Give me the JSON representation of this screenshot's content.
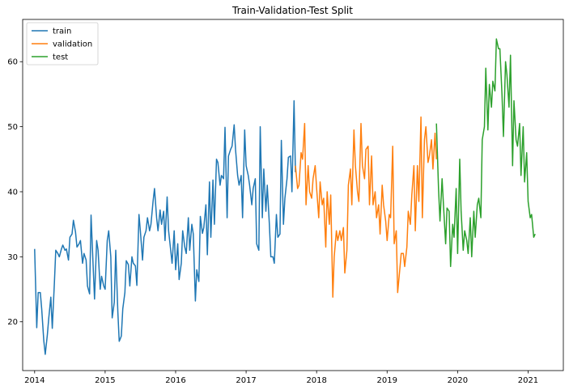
{
  "chart_data": {
    "type": "line",
    "title": "Train-Validation-Test Split",
    "xlabel": "",
    "ylabel": "",
    "xlim": [
      2013.83,
      2021.5
    ],
    "ylim": [
      12.5,
      66.5
    ],
    "x_ticks": [
      2014,
      2015,
      2016,
      2017,
      2018,
      2019,
      2020,
      2021
    ],
    "x_tick_labels": [
      "2014",
      "2015",
      "2016",
      "2017",
      "2018",
      "2019",
      "2020",
      "2021"
    ],
    "y_ticks": [
      20,
      30,
      40,
      50,
      60
    ],
    "y_tick_labels": [
      "20",
      "30",
      "40",
      "50",
      "60"
    ],
    "grid": false,
    "legend_position": "top-left",
    "series": [
      {
        "name": "train",
        "color": "#1f77b4",
        "x": [
          2014.0,
          2014.03,
          2014.05,
          2014.08,
          2014.1,
          2014.13,
          2014.15,
          2014.18,
          2014.2,
          2014.23,
          2014.25,
          2014.28,
          2014.3,
          2014.33,
          2014.35,
          2014.38,
          2014.4,
          2014.43,
          2014.45,
          2014.48,
          2014.5,
          2014.53,
          2014.55,
          2014.58,
          2014.6,
          2014.63,
          2014.65,
          2014.68,
          2014.7,
          2014.73,
          2014.75,
          2014.78,
          2014.8,
          2014.83,
          2014.85,
          2014.88,
          2014.9,
          2014.93,
          2014.95,
          2014.98,
          2015.0,
          2015.03,
          2015.05,
          2015.08,
          2015.1,
          2015.13,
          2015.15,
          2015.18,
          2015.2,
          2015.23,
          2015.25,
          2015.28,
          2015.3,
          2015.33,
          2015.35,
          2015.38,
          2015.4,
          2015.43,
          2015.45,
          2015.48,
          2015.5,
          2015.53,
          2015.55,
          2015.58,
          2015.6,
          2015.63,
          2015.65,
          2015.68,
          2015.7,
          2015.73,
          2015.75,
          2015.78,
          2015.8,
          2015.83,
          2015.85,
          2015.88,
          2015.9,
          2015.93,
          2015.95,
          2015.98,
          2016.0,
          2016.03,
          2016.05,
          2016.08,
          2016.1,
          2016.13,
          2016.15,
          2016.18,
          2016.2,
          2016.23,
          2016.25,
          2016.28,
          2016.3,
          2016.33,
          2016.35,
          2016.38,
          2016.4,
          2016.43,
          2016.45,
          2016.48,
          2016.5,
          2016.53,
          2016.55,
          2016.58,
          2016.6,
          2016.63,
          2016.65,
          2016.68,
          2016.7,
          2016.73,
          2016.75,
          2016.78,
          2016.8,
          2016.83,
          2016.85,
          2016.88,
          2016.9,
          2016.93,
          2016.95,
          2016.98,
          2017.0,
          2017.03,
          2017.05,
          2017.08,
          2017.1,
          2017.13,
          2017.15,
          2017.18,
          2017.2,
          2017.23,
          2017.25,
          2017.28,
          2017.3,
          2017.33,
          2017.35,
          2017.38,
          2017.4,
          2017.43,
          2017.45,
          2017.48,
          2017.5,
          2017.53,
          2017.55
        ],
        "values": [
          31.2,
          19.1,
          24.5,
          24.5,
          22.0,
          17.1,
          15.0,
          18.0,
          20.5,
          23.8,
          19.0,
          26.0,
          31.0,
          30.5,
          30.0,
          31.2,
          31.8,
          31.0,
          31.2,
          29.5,
          33.0,
          33.5,
          35.6,
          33.8,
          31.5,
          32.0,
          32.5,
          29.0,
          30.5,
          29.5,
          25.5,
          24.3,
          36.4,
          28.5,
          23.5,
          32.5,
          31.0,
          25.0,
          27.0,
          25.5,
          25.0,
          32.5,
          34.0,
          30.0,
          20.6,
          23.0,
          31.0,
          21.5,
          17.0,
          17.8,
          22.0,
          24.5,
          29.4,
          28.8,
          25.5,
          30.0,
          29.0,
          28.6,
          25.6,
          36.5,
          34.0,
          29.5,
          33.0,
          34.0,
          36.0,
          34.0,
          35.0,
          38.5,
          40.5,
          36.0,
          34.0,
          37.2,
          35.0,
          37.0,
          32.5,
          39.2,
          34.0,
          31.0,
          29.0,
          34.0,
          28.0,
          32.0,
          26.5,
          29.0,
          34.0,
          31.5,
          30.5,
          36.0,
          31.0,
          35.0,
          33.5,
          23.2,
          28.0,
          26.2,
          36.2,
          33.6,
          34.5,
          38.0,
          30.3,
          41.5,
          33.0,
          41.8,
          35.0,
          45.0,
          44.5,
          41.0,
          42.5,
          42.0,
          49.9,
          36.0,
          45.5,
          46.5,
          47.0,
          50.3,
          46.5,
          42.5,
          41.0,
          42.5,
          36.0,
          49.5,
          44.0,
          42.5,
          41.0,
          38.0,
          40.5,
          42.0,
          32.0,
          31.0,
          50.0,
          36.0,
          43.5,
          37.0,
          41.0,
          35.0,
          30.0,
          30.0,
          29.0,
          36.5,
          33.0,
          33.5,
          47.9,
          35.0,
          39.0
        ],
        "values_tail_note": "",
        "x_tail": [
          2017.58,
          2017.6,
          2017.63,
          2017.65,
          2017.68,
          2017.7
        ],
        "values_tail": [
          42.0,
          45.3,
          45.5,
          40.0,
          54.0,
          43.0
        ]
      },
      {
        "name": "validation",
        "color": "#ff7f0e",
        "x": [
          2017.7,
          2017.73,
          2017.75,
          2017.78,
          2017.8,
          2017.83,
          2017.85,
          2017.88,
          2017.9,
          2017.93,
          2017.95,
          2017.98,
          2018.0,
          2018.03,
          2018.05,
          2018.08,
          2018.1,
          2018.13,
          2018.15,
          2018.18,
          2018.2,
          2018.23,
          2018.25,
          2018.28,
          2018.3,
          2018.33,
          2018.35,
          2018.38,
          2018.4,
          2018.43,
          2018.45,
          2018.48,
          2018.5,
          2018.53,
          2018.55,
          2018.58,
          2018.6,
          2018.63,
          2018.65,
          2018.68,
          2018.7,
          2018.73,
          2018.75,
          2018.78,
          2018.8,
          2018.83,
          2018.85,
          2018.88,
          2018.9,
          2018.93,
          2018.95,
          2018.98,
          2019.0,
          2019.03,
          2019.05,
          2019.08,
          2019.1,
          2019.13,
          2019.15,
          2019.18,
          2019.2,
          2019.23,
          2019.25,
          2019.28,
          2019.3,
          2019.33,
          2019.35,
          2019.38,
          2019.4,
          2019.43,
          2019.45,
          2019.48,
          2019.5,
          2019.53,
          2019.55,
          2019.58,
          2019.6,
          2019.63
        ],
        "values": [
          44.0,
          40.5,
          41.0,
          46.0,
          45.0,
          50.5,
          38.0,
          44.0,
          40.0,
          39.0,
          42.0,
          44.0,
          40.5,
          36.0,
          41.5,
          38.0,
          39.0,
          31.5,
          40.0,
          35.0,
          39.5,
          23.8,
          30.0,
          34.0,
          32.5,
          34.0,
          32.5,
          34.5,
          27.5,
          31.0,
          41.0,
          43.5,
          38.0,
          49.5,
          44.0,
          40.0,
          38.5,
          50.5,
          44.0,
          42.0,
          46.5,
          47.0,
          38.0,
          45.5,
          38.0,
          40.0,
          36.0,
          38.0,
          33.5,
          41.0,
          38.0,
          35.5,
          32.5,
          36.5,
          36.0,
          47.0,
          32.0,
          34.0,
          24.5,
          28.0,
          30.5,
          30.5,
          28.5,
          31.5,
          37.0,
          35.0,
          39.5,
          44.0,
          34.0,
          44.0,
          38.5,
          51.5,
          36.0,
          48.0,
          50.0,
          44.5,
          45.5,
          48.0
        ],
        "x_tail": [
          2019.65,
          2019.68,
          2019.7
        ],
        "values_tail": [
          43.5,
          49.0,
          45.0
        ]
      },
      {
        "name": "test",
        "color": "#2ca02c",
        "x": [
          2019.7,
          2019.73,
          2019.75,
          2019.78,
          2019.8,
          2019.83,
          2019.85,
          2019.88,
          2019.9,
          2019.93,
          2019.95,
          2019.98,
          2020.0,
          2020.03,
          2020.05,
          2020.08,
          2020.1,
          2020.13,
          2020.15,
          2020.18,
          2020.2,
          2020.23,
          2020.25,
          2020.28,
          2020.3,
          2020.33,
          2020.35,
          2020.38,
          2020.4,
          2020.43,
          2020.45,
          2020.48,
          2020.5,
          2020.53,
          2020.55,
          2020.58,
          2020.6,
          2020.63,
          2020.65,
          2020.68,
          2020.7,
          2020.73,
          2020.75,
          2020.78,
          2020.8,
          2020.83,
          2020.85,
          2020.88,
          2020.9,
          2020.93,
          2020.95,
          2020.98,
          2021.0,
          2021.03,
          2021.05,
          2021.08,
          2021.1
        ],
        "values": [
          50.5,
          40.5,
          35.5,
          42.0,
          38.0,
          32.0,
          37.5,
          37.0,
          28.5,
          35.0,
          33.0,
          40.5,
          30.5,
          45.0,
          37.0,
          31.0,
          34.0,
          32.5,
          30.5,
          36.0,
          30.0,
          37.0,
          33.0,
          38.0,
          39.0,
          36.0,
          48.0,
          50.0,
          59.0,
          49.5,
          56.5,
          53.0,
          57.0,
          55.5,
          63.5,
          62.0,
          62.0,
          55.0,
          48.5,
          60.0,
          58.0,
          53.0,
          61.0,
          44.0,
          54.0,
          48.0,
          47.0,
          50.5,
          42.5,
          50.0,
          41.5,
          46.0,
          38.5,
          36.0,
          36.5,
          33.0,
          33.5
        ],
        "x_tail": [],
        "values_tail": []
      }
    ]
  }
}
